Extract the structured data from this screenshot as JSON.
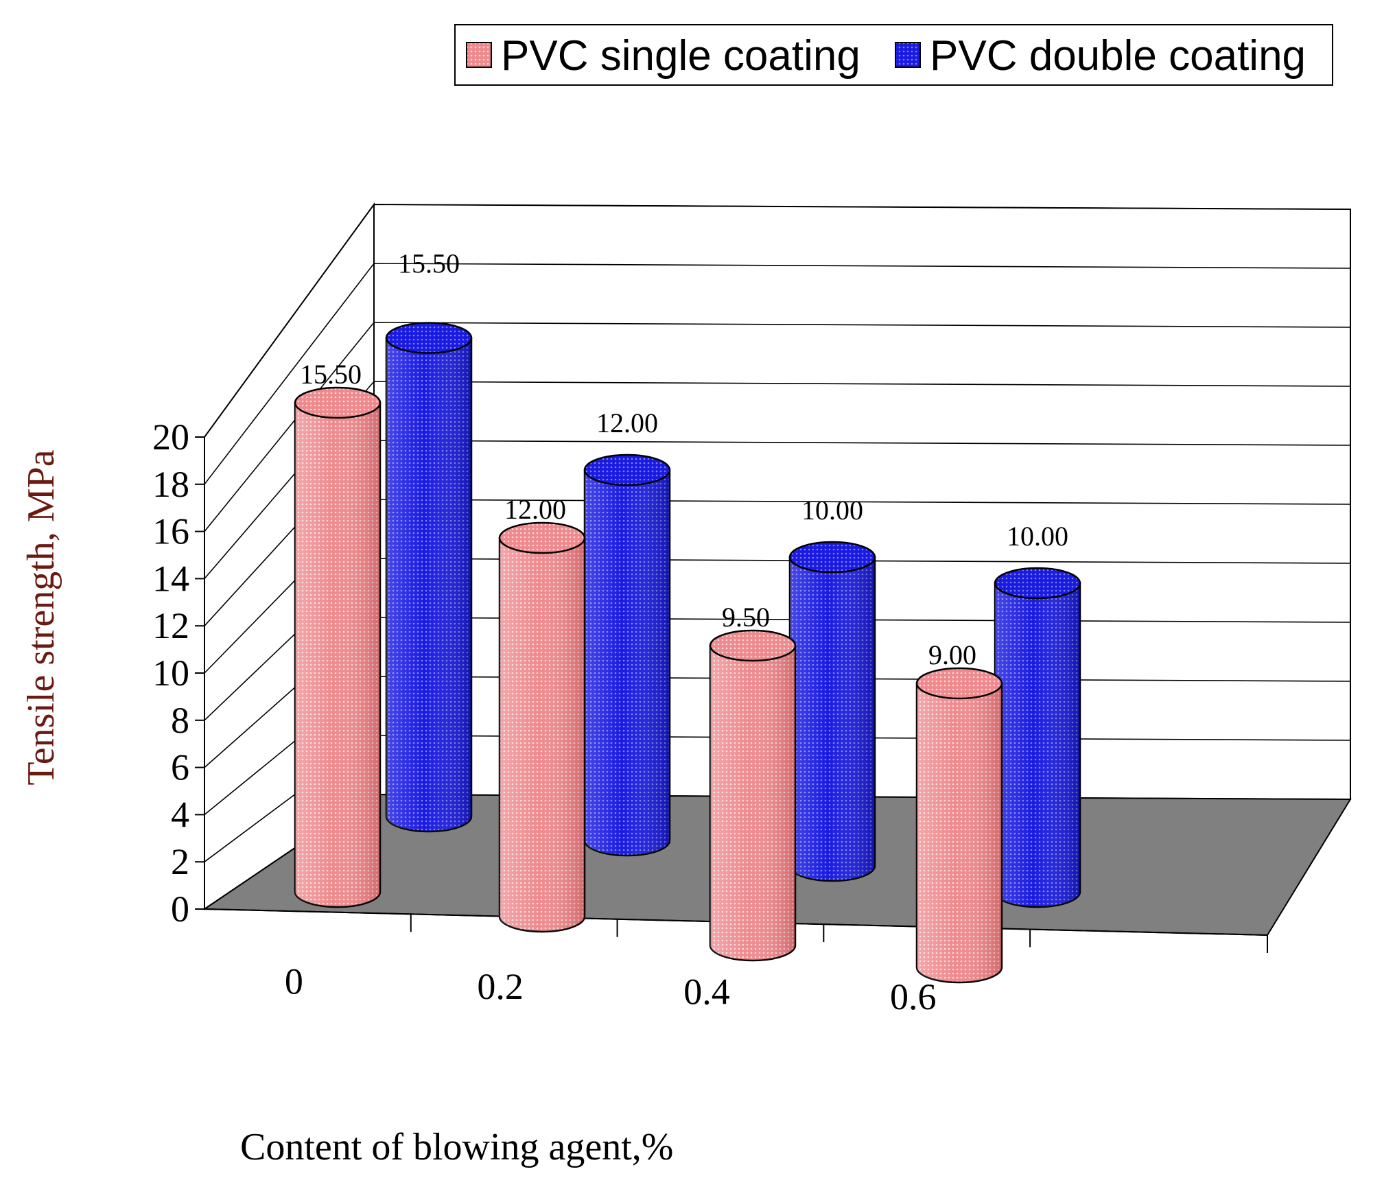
{
  "chart_data": {
    "type": "bar",
    "style": "3d-cylinder",
    "xlabel": "Content of blowing agent,%",
    "ylabel": "Tensile strength, MPa",
    "categories": [
      "0",
      "0.2",
      "0.4",
      "0.6"
    ],
    "series": [
      {
        "name": "PVC single coating",
        "values": [
          15.5,
          12.0,
          9.5,
          9.0
        ],
        "labels": [
          "15.50",
          "12.00",
          "9.50",
          "9.00"
        ],
        "color": "#e0585e"
      },
      {
        "name": "PVC double coating",
        "values": [
          15.5,
          12.0,
          10.0,
          10.0
        ],
        "labels": [
          "15.50",
          "12.00",
          "10.00",
          "10.00"
        ],
        "color": "#2020d8"
      }
    ],
    "ylim": [
      0,
      20
    ],
    "yticks": [
      "0",
      "2",
      "4",
      "6",
      "8",
      "10",
      "12",
      "14",
      "16",
      "18",
      "20"
    ],
    "grid": true,
    "legend": "top-right",
    "colors": {
      "floor": "#808080",
      "axis_title": "#6b1a12",
      "grid": "#000000"
    }
  }
}
